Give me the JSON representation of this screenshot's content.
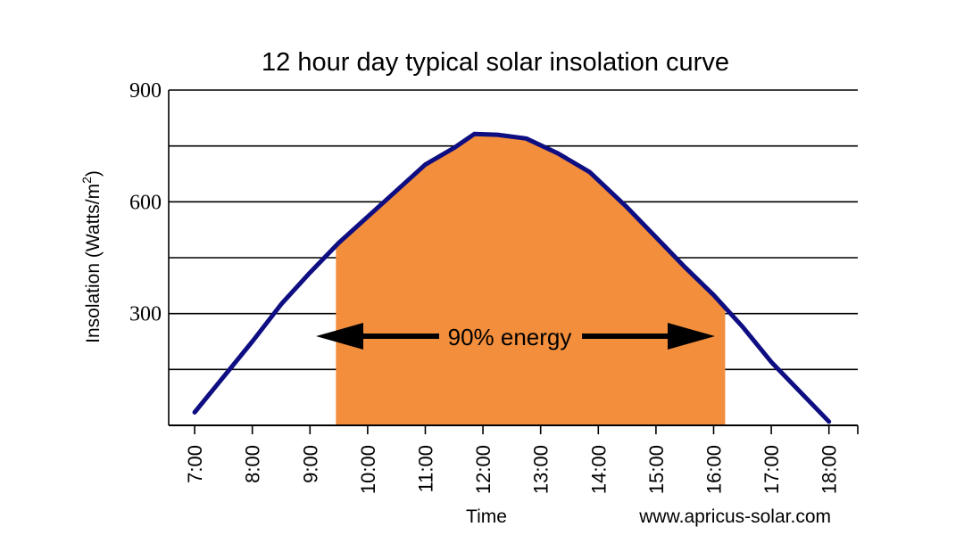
{
  "chart_data": {
    "type": "area",
    "title": "12 hour day typical solar insolation curve",
    "xlabel": "Time",
    "ylabel_main": "Insolation (Watts/m",
    "ylabel_sup": "2",
    "ylabel_close": ")",
    "ylim": [
      0,
      900
    ],
    "y_tick_values": [
      300,
      600,
      900
    ],
    "y_tick_labels": [
      "300",
      "600",
      "900"
    ],
    "gridlines": [
      150,
      300,
      450,
      600,
      750,
      900
    ],
    "x_hours": [
      7,
      8,
      9,
      10,
      11,
      12,
      13,
      14,
      15,
      16,
      17,
      18
    ],
    "x_tick_labels": [
      "7:00",
      "8:00",
      "9:00",
      "10:00",
      "11:00",
      "12:00",
      "13:00",
      "14:00",
      "15:00",
      "16:00",
      "17:00",
      "18:00"
    ],
    "xlim": [
      6.55,
      18.5
    ],
    "series": [
      {
        "name": "Insolation",
        "color": "#0e0e82",
        "x": [
          7.0,
          7.5,
          8.0,
          8.5,
          9.0,
          9.5,
          10.0,
          10.5,
          11.0,
          11.5,
          11.85,
          12.25,
          12.75,
          13.3,
          13.85,
          14.5,
          15.0,
          15.5,
          16.0,
          16.5,
          17.0,
          17.5,
          18.0
        ],
        "y": [
          35,
          130,
          225,
          325,
          410,
          490,
          560,
          630,
          700,
          745,
          782,
          780,
          770,
          730,
          680,
          585,
          505,
          425,
          350,
          265,
          170,
          90,
          10
        ]
      }
    ],
    "shaded_range": {
      "x_start": 9.45,
      "x_end": 16.2,
      "color": "#f28e3c",
      "label": "90% energy"
    },
    "credit": "www.apricus-solar.com"
  }
}
